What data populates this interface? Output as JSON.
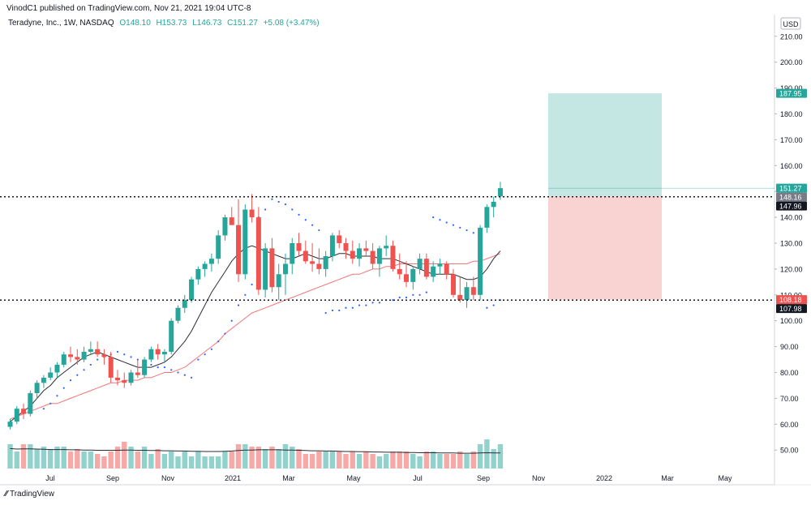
{
  "publish_line": "VinodC1 published on TradingView.com, Nov 21, 2021 19:04 UTC-8",
  "legend": {
    "symbol": "Teradyne, Inc., 1W, NASDAQ",
    "open": "O148.10",
    "high": "H153.73",
    "low": "L146.73",
    "close": "C151.27",
    "change": "+5.08 (+3.47%)"
  },
  "currency": "USD",
  "logo_text": "TradingView",
  "colors": {
    "up": "#26a69a",
    "down": "#ef5350",
    "profit_zone": "#b2dfdb",
    "loss_zone": "#f8c8c6",
    "sma_fast": "#2a2e39",
    "sma_slow": "#f2767a",
    "sar": "#2962ff"
  },
  "chart_data": {
    "type": "candlestick",
    "title": "Teradyne, Inc., 1W, NASDAQ",
    "x_ticks": [
      "Jul",
      "Sep",
      "Nov",
      "2021",
      "Mar",
      "May",
      "Jul",
      "Sep",
      "Nov",
      "2022",
      "Mar",
      "May"
    ],
    "y_ticks": [
      50,
      60,
      70,
      80,
      90,
      100,
      110,
      120,
      130,
      140,
      150,
      160,
      170,
      180,
      190,
      200,
      210
    ],
    "ylim": [
      46,
      214
    ],
    "candles": [
      [
        59,
        62,
        58,
        61
      ],
      [
        61,
        67,
        60,
        66
      ],
      [
        66,
        68,
        62,
        64
      ],
      [
        64,
        73,
        63,
        72
      ],
      [
        72,
        77,
        70,
        76
      ],
      [
        76,
        79,
        74,
        78
      ],
      [
        78,
        82,
        77,
        80
      ],
      [
        80,
        84,
        78,
        83
      ],
      [
        83,
        88,
        82,
        87
      ],
      [
        87,
        90,
        84,
        86
      ],
      [
        86,
        89,
        83,
        85
      ],
      [
        85,
        90,
        84,
        88
      ],
      [
        88,
        92,
        87,
        89
      ],
      [
        89,
        92,
        86,
        87
      ],
      [
        87,
        89,
        83,
        86
      ],
      [
        86,
        88,
        76,
        78
      ],
      [
        78,
        81,
        75,
        77
      ],
      [
        77,
        80,
        74,
        76
      ],
      [
        76,
        81,
        75,
        80
      ],
      [
        80,
        85,
        78,
        79
      ],
      [
        79,
        86,
        78,
        85
      ],
      [
        85,
        90,
        84,
        89
      ],
      [
        89,
        91,
        85,
        87
      ],
      [
        87,
        89,
        84,
        88
      ],
      [
        88,
        101,
        87,
        100
      ],
      [
        100,
        106,
        99,
        105
      ],
      [
        105,
        110,
        103,
        108
      ],
      [
        108,
        117,
        107,
        116
      ],
      [
        116,
        121,
        114,
        120
      ],
      [
        120,
        123,
        117,
        122
      ],
      [
        122,
        126,
        119,
        124
      ],
      [
        124,
        135,
        122,
        133
      ],
      [
        133,
        141,
        131,
        140
      ],
      [
        140,
        144,
        137,
        137
      ],
      [
        137,
        147,
        115,
        118
      ],
      [
        118,
        145,
        116,
        143
      ],
      [
        143,
        149,
        138,
        140
      ],
      [
        140,
        144,
        110,
        112
      ],
      [
        112,
        130,
        109,
        128
      ],
      [
        128,
        132,
        111,
        113
      ],
      [
        113,
        122,
        108,
        118
      ],
      [
        118,
        126,
        110,
        122
      ],
      [
        122,
        132,
        118,
        130
      ],
      [
        130,
        134,
        125,
        127
      ],
      [
        127,
        131,
        122,
        123
      ],
      [
        123,
        130,
        119,
        122
      ],
      [
        122,
        128,
        118,
        120
      ],
      [
        120,
        127,
        117,
        125
      ],
      [
        125,
        134,
        123,
        133
      ],
      [
        133,
        135,
        128,
        130
      ],
      [
        130,
        132,
        124,
        127
      ],
      [
        127,
        131,
        122,
        124
      ],
      [
        124,
        130,
        121,
        128
      ],
      [
        128,
        131,
        125,
        127
      ],
      [
        127,
        130,
        120,
        122
      ],
      [
        122,
        129,
        117,
        128
      ],
      [
        128,
        133,
        125,
        129
      ],
      [
        129,
        131,
        119,
        120
      ],
      [
        120,
        126,
        116,
        118
      ],
      [
        118,
        123,
        113,
        115
      ],
      [
        115,
        121,
        112,
        120
      ],
      [
        120,
        126,
        118,
        124
      ],
      [
        124,
        126,
        116,
        117
      ],
      [
        117,
        123,
        115,
        121
      ],
      [
        121,
        124,
        118,
        122
      ],
      [
        122,
        123,
        116,
        118
      ],
      [
        118,
        120,
        109,
        110
      ],
      [
        110,
        117,
        107,
        108
      ],
      [
        108,
        115,
        105,
        113
      ],
      [
        113,
        117,
        108,
        110
      ],
      [
        110,
        137,
        108,
        136
      ],
      [
        136,
        145,
        134,
        144
      ],
      [
        144,
        148,
        140,
        146
      ],
      [
        148.1,
        153.73,
        146.73,
        151.27
      ]
    ],
    "volume": [
      10,
      7,
      10,
      10,
      8,
      9,
      8,
      9,
      9,
      7,
      8,
      7,
      7,
      6,
      5,
      7,
      9,
      11,
      9,
      7,
      9,
      6,
      8,
      6,
      7,
      5,
      7,
      5,
      7,
      5,
      5,
      5,
      7,
      7,
      10,
      10,
      9,
      9,
      8,
      9,
      8,
      10,
      9,
      8,
      6,
      6,
      7,
      7,
      7,
      7,
      6,
      7,
      6,
      7,
      6,
      5,
      6,
      7,
      7,
      7,
      6,
      5,
      7,
      7,
      6,
      6,
      6,
      7,
      6,
      7,
      10,
      12,
      8,
      10
    ],
    "volume_avg": [
      8.2,
      8.0,
      8.1,
      8.1,
      8.0,
      7.9,
      7.8,
      7.8,
      7.8,
      7.7,
      7.7,
      7.6,
      7.6,
      7.5,
      7.5,
      7.5,
      7.5,
      7.6,
      7.6,
      7.5,
      7.5,
      7.4,
      7.4,
      7.3,
      7.3,
      7.2,
      7.2,
      7.1,
      7.1,
      7.0,
      7.0,
      7.0,
      7.1,
      7.2,
      7.4,
      7.6,
      7.6,
      7.7,
      7.7,
      7.7,
      7.7,
      7.6,
      7.6,
      7.5,
      7.4,
      7.3,
      7.3,
      7.2,
      7.2,
      7.1,
      7.0,
      7.0,
      6.9,
      6.9,
      6.8,
      6.8,
      6.7,
      6.7,
      6.7,
      6.6,
      6.6,
      6.5,
      6.5,
      6.5,
      6.4,
      6.4,
      6.4,
      6.3,
      6.3,
      6.3,
      6.4,
      6.5,
      6.4,
      6.4
    ],
    "sma_fast": [
      61,
      63,
      65,
      67,
      70,
      73,
      75,
      78,
      80,
      82,
      84,
      86,
      87,
      88,
      87,
      86,
      85,
      84,
      83,
      82,
      82,
      82,
      83,
      84,
      86,
      89,
      92,
      96,
      101,
      106,
      111,
      115,
      119,
      123,
      126,
      128,
      129,
      128,
      127,
      126,
      125,
      124,
      124,
      125,
      126,
      125,
      124,
      124,
      125,
      126,
      126,
      125,
      125,
      125,
      125,
      124,
      124,
      124,
      123,
      122,
      121,
      120,
      119,
      118,
      118,
      118,
      118,
      117,
      116,
      116,
      117,
      120,
      124,
      127
    ],
    "sma_slow": [
      62,
      63,
      64,
      65,
      66,
      67,
      68,
      68,
      69,
      70,
      71,
      72,
      73,
      74,
      75,
      76,
      76,
      77,
      77,
      77,
      78,
      78,
      79,
      80,
      80,
      81,
      82,
      84,
      86,
      88,
      90,
      92,
      95,
      97,
      99,
      101,
      103,
      104,
      105,
      106,
      107,
      108,
      109,
      110,
      111,
      112,
      113,
      114,
      115,
      116,
      117,
      118,
      118,
      119,
      120,
      120,
      121,
      121,
      122,
      122,
      122,
      122,
      122,
      122,
      122,
      122,
      122,
      122,
      122,
      123,
      123,
      124,
      125,
      126
    ],
    "psar": [
      null,
      null,
      null,
      null,
      null,
      66,
      68,
      71,
      74,
      77,
      79,
      81,
      83,
      85,
      86,
      87,
      88,
      87,
      86,
      85,
      84,
      83,
      82,
      82,
      81,
      80,
      79,
      78,
      85,
      87,
      89,
      92,
      95,
      100,
      106,
      110,
      114,
      140,
      143,
      147,
      146,
      145,
      143,
      141,
      139,
      137,
      135,
      103,
      104,
      104,
      105,
      105,
      106,
      106,
      107,
      107,
      108,
      108,
      109,
      109,
      110,
      110,
      111,
      140,
      139,
      138,
      137,
      136,
      135,
      134,
      133,
      105,
      106,
      108
    ],
    "position": {
      "entry": 148.16,
      "target": 187.95,
      "stop": 108.18,
      "entry_line_level": 147.96,
      "stop_line_level": 107.98,
      "last_price": 151.27
    },
    "price_labels": [
      {
        "value": "187.95",
        "level": 187.95,
        "kind": "profit"
      },
      {
        "value": "151.27",
        "level": 151.27,
        "kind": "last"
      },
      {
        "value": "148.16",
        "level": 148.16,
        "kind": "entry"
      },
      {
        "value": "147.96",
        "level": 147.96,
        "kind": "line"
      },
      {
        "value": "108.18",
        "level": 108.18,
        "kind": "stop"
      },
      {
        "value": "107.98",
        "level": 107.98,
        "kind": "line"
      }
    ]
  }
}
